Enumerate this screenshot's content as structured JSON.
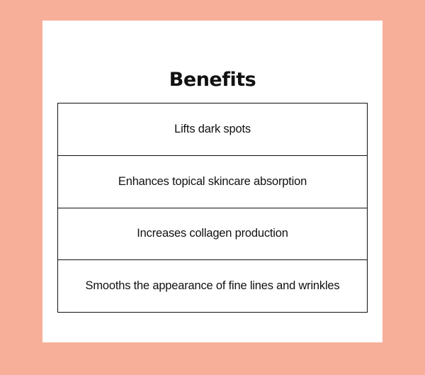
{
  "page": {
    "title": "Benefits",
    "benefits": [
      "Lifts dark spots",
      "Enhances topical skincare absorption",
      "Increases collagen production",
      "Smooths the appearance of fine lines and wrinkles"
    ]
  },
  "colors": {
    "background": "#f7af99",
    "card": "#ffffff",
    "text": "#111111",
    "border": "#111111"
  }
}
